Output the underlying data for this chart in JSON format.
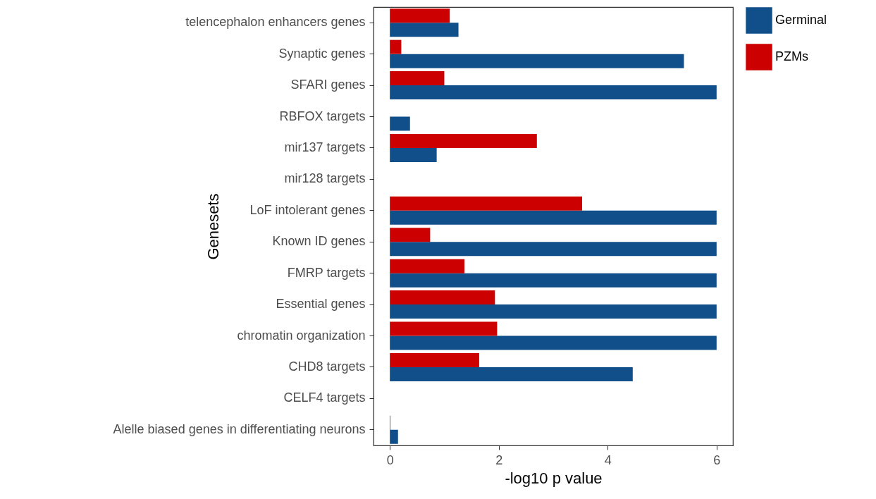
{
  "chart_data": {
    "type": "bar",
    "orientation": "horizontal",
    "xlabel": "-log10 p value",
    "ylabel": "Genesets",
    "categories": [
      "telencephalon enhancers genes",
      "Synaptic genes",
      "SFARI genes",
      "RBFOX targets",
      "mir137 targets",
      "mir128 targets",
      "LoF intolerant genes",
      "Known ID genes",
      "FMRP targets",
      "Essential genes",
      "chromatin organization",
      "CHD8 targets",
      "CELF4 targets",
      "Alelle biased genes in differentiating neurons"
    ],
    "series": [
      {
        "name": "Germinal",
        "color": "#114f8a",
        "values": [
          1.26,
          5.4,
          6,
          0.37,
          0.86,
          null,
          6,
          6,
          6,
          6,
          6,
          4.46,
          null,
          0.15
        ]
      },
      {
        "name": "PZMs",
        "color": "#cc0000",
        "values": [
          1.1,
          0.21,
          1.0,
          null,
          2.7,
          null,
          3.53,
          0.74,
          1.37,
          1.93,
          1.97,
          1.64,
          null,
          0.01
        ]
      }
    ],
    "xlim": [
      -0.3,
      6.3
    ],
    "xticks": [
      0,
      2,
      4,
      6
    ],
    "grid": false,
    "legend": "right"
  }
}
